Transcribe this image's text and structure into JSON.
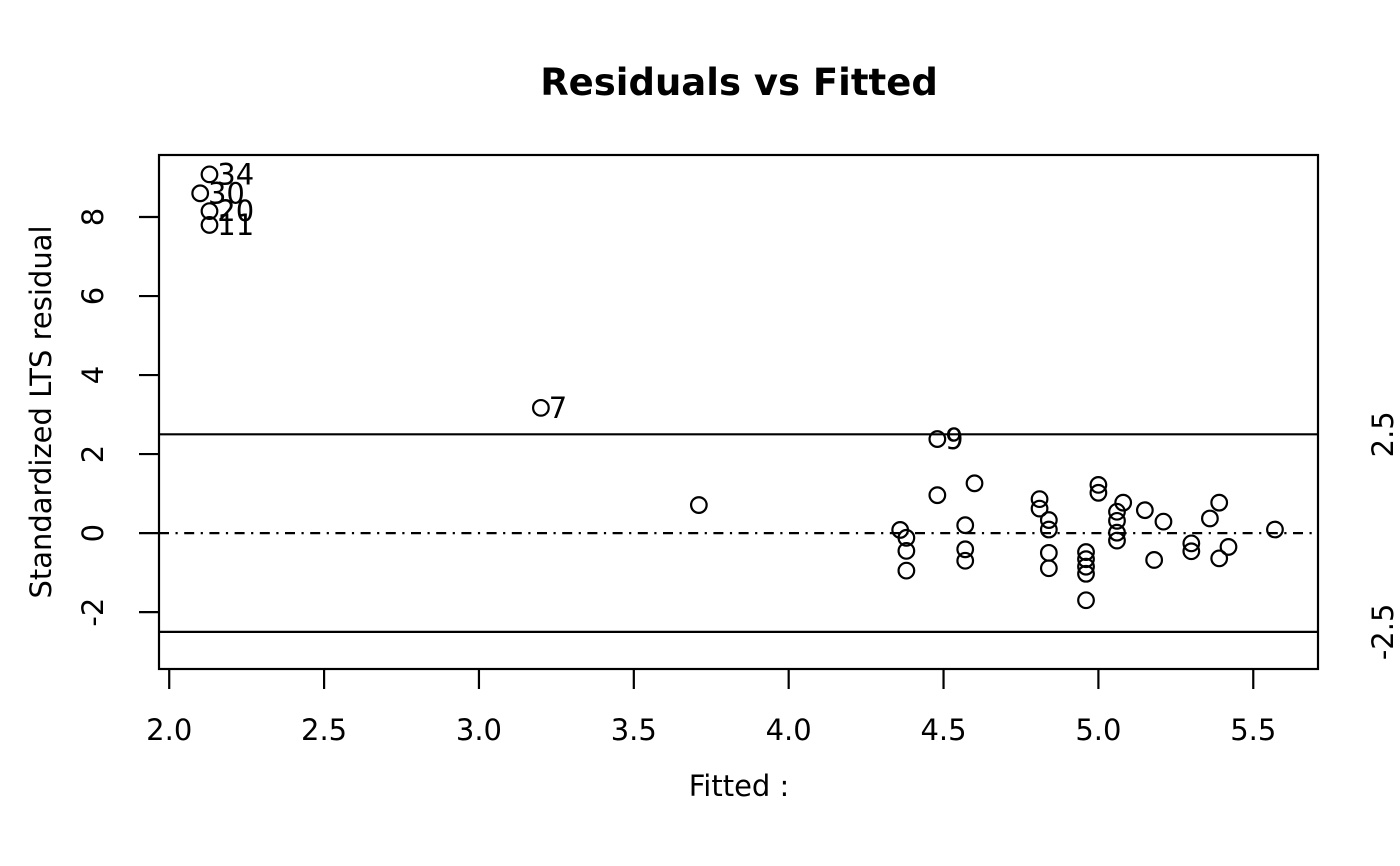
{
  "figure": {
    "colors": {
      "background": "#ffffff",
      "foreground": "#000000"
    }
  },
  "chart_data": {
    "type": "scatter",
    "title": "Residuals vs Fitted",
    "xlabel": "Fitted :",
    "ylabel": "Standardized LTS residual",
    "xlim": [
      1.967,
      5.709
    ],
    "ylim": [
      -3.44,
      9.57
    ],
    "grid": false,
    "legend": null,
    "marker": "open-circle",
    "x_ticks": {
      "values": [
        2.0,
        2.5,
        3.0,
        3.5,
        4.0,
        4.5,
        5.0,
        5.5
      ],
      "labels": [
        "2.0",
        "2.5",
        "3.0",
        "3.5",
        "4.0",
        "4.5",
        "5.0",
        "5.5"
      ]
    },
    "y_ticks": {
      "values": [
        -2,
        0,
        2,
        4,
        6,
        8
      ],
      "labels": [
        "-2",
        "0",
        "2",
        "4",
        "6",
        "8"
      ]
    },
    "reference_lines": [
      {
        "y": 2.5,
        "style": "solid",
        "label_right": "2.5"
      },
      {
        "y": -2.5,
        "style": "solid",
        "label_right": "-2.5"
      },
      {
        "y": 0.0,
        "style": "dotdash",
        "label_right": null
      }
    ],
    "points": [
      {
        "x": 2.13,
        "y": 9.08,
        "label": "34"
      },
      {
        "x": 2.1,
        "y": 8.6,
        "label": "30"
      },
      {
        "x": 2.13,
        "y": 8.15,
        "label": "20"
      },
      {
        "x": 2.13,
        "y": 7.8,
        "label": "11"
      },
      {
        "x": 3.2,
        "y": 3.17,
        "label": "7"
      },
      {
        "x": 4.48,
        "y": 2.38,
        "label": "9"
      },
      {
        "x": 3.71,
        "y": 0.71,
        "label": null
      },
      {
        "x": 4.36,
        "y": 0.08,
        "label": null
      },
      {
        "x": 4.38,
        "y": -0.12,
        "label": null
      },
      {
        "x": 4.38,
        "y": -0.45,
        "label": null
      },
      {
        "x": 4.38,
        "y": -0.95,
        "label": null
      },
      {
        "x": 4.48,
        "y": 0.96,
        "label": null
      },
      {
        "x": 4.6,
        "y": 1.26,
        "label": null
      },
      {
        "x": 4.57,
        "y": 0.2,
        "label": null
      },
      {
        "x": 4.57,
        "y": -0.41,
        "label": null
      },
      {
        "x": 4.57,
        "y": -0.7,
        "label": null
      },
      {
        "x": 4.81,
        "y": 0.86,
        "label": null
      },
      {
        "x": 4.81,
        "y": 0.62,
        "label": null
      },
      {
        "x": 4.84,
        "y": 0.33,
        "label": null
      },
      {
        "x": 4.84,
        "y": 0.09,
        "label": null
      },
      {
        "x": 4.84,
        "y": -0.5,
        "label": null
      },
      {
        "x": 4.84,
        "y": -0.89,
        "label": null
      },
      {
        "x": 5.0,
        "y": 1.22,
        "label": null
      },
      {
        "x": 5.0,
        "y": 1.02,
        "label": null
      },
      {
        "x": 5.08,
        "y": 0.77,
        "label": null
      },
      {
        "x": 5.06,
        "y": 0.54,
        "label": null
      },
      {
        "x": 5.06,
        "y": 0.31,
        "label": null
      },
      {
        "x": 5.06,
        "y": 0.01,
        "label": null
      },
      {
        "x": 5.06,
        "y": -0.19,
        "label": null
      },
      {
        "x": 4.96,
        "y": -0.48,
        "label": null
      },
      {
        "x": 4.96,
        "y": -0.66,
        "label": null
      },
      {
        "x": 4.96,
        "y": -0.85,
        "label": null
      },
      {
        "x": 4.96,
        "y": -1.03,
        "label": null
      },
      {
        "x": 4.96,
        "y": -1.7,
        "label": null
      },
      {
        "x": 5.15,
        "y": 0.58,
        "label": null
      },
      {
        "x": 5.21,
        "y": 0.29,
        "label": null
      },
      {
        "x": 5.18,
        "y": -0.68,
        "label": null
      },
      {
        "x": 5.3,
        "y": -0.26,
        "label": null
      },
      {
        "x": 5.3,
        "y": -0.46,
        "label": null
      },
      {
        "x": 5.36,
        "y": 0.37,
        "label": null
      },
      {
        "x": 5.39,
        "y": 0.77,
        "label": null
      },
      {
        "x": 5.42,
        "y": -0.35,
        "label": null
      },
      {
        "x": 5.39,
        "y": -0.64,
        "label": null
      },
      {
        "x": 5.57,
        "y": 0.09,
        "label": null
      }
    ]
  }
}
